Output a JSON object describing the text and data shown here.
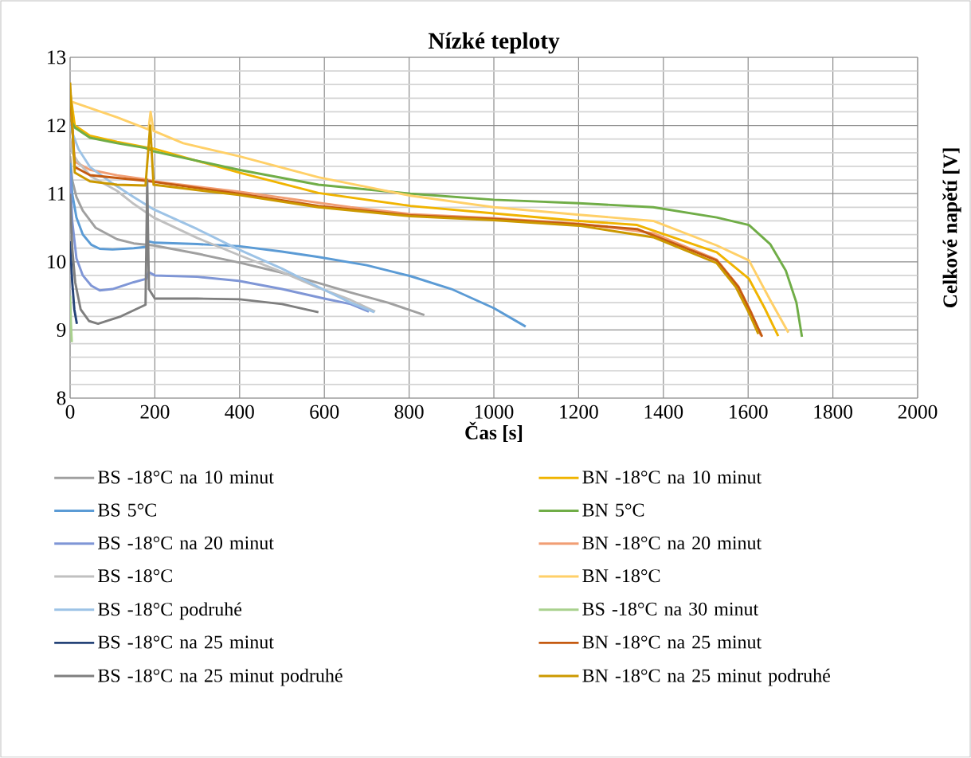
{
  "chart_data": {
    "type": "line",
    "title": "Nízké teploty",
    "xlabel": "Čas [s]",
    "ylabel": "Celkové napětí [V]",
    "xlim": [
      0,
      2000
    ],
    "xticks": [
      0,
      200,
      400,
      600,
      800,
      1000,
      1200,
      1400,
      1600,
      1800,
      2000
    ],
    "ylim": [
      8,
      13
    ],
    "yticks": [
      8,
      9,
      10,
      11,
      12,
      13
    ],
    "grid": true,
    "legend": "bottom",
    "marker": "none",
    "line_style": "solid",
    "series": [
      {
        "name": "BS -18°C na 10 minut",
        "color": "#a0a0a0",
        "x": [
          0,
          5,
          15,
          30,
          60,
          111,
          150,
          197,
          300,
          398,
          500,
          586,
          662,
          750,
          836
        ],
        "values": [
          11.55,
          11.2,
          10.95,
          10.75,
          10.5,
          10.33,
          10.27,
          10.24,
          10.12,
          9.99,
          9.84,
          9.69,
          9.55,
          9.4,
          9.22
        ]
      },
      {
        "name": "BN -18°C na 10 minut",
        "color": "#f0b400",
        "x": [
          0,
          11,
          47,
          111,
          178,
          197,
          398,
          586,
          803,
          1000,
          1201,
          1338,
          1526,
          1602,
          1639,
          1671
        ],
        "values": [
          12.5,
          12.0,
          11.85,
          11.76,
          11.68,
          11.66,
          11.31,
          11.01,
          10.82,
          10.71,
          10.6,
          10.54,
          10.14,
          9.75,
          9.32,
          8.91
        ]
      },
      {
        "name": "BS 5°C",
        "color": "#5b9bd5",
        "x": [
          0,
          5,
          15,
          30,
          50,
          70,
          100,
          150,
          180,
          185,
          200,
          300,
          398,
          500,
          586,
          700,
          803,
          900,
          1000,
          1075
        ],
        "values": [
          11.45,
          11.0,
          10.65,
          10.4,
          10.25,
          10.19,
          10.18,
          10.2,
          10.22,
          10.3,
          10.28,
          10.26,
          10.23,
          10.15,
          10.07,
          9.95,
          9.79,
          9.6,
          9.32,
          9.05
        ]
      },
      {
        "name": "BN 5°C",
        "color": "#70ad47",
        "x": [
          0,
          11,
          47,
          111,
          178,
          197,
          398,
          586,
          803,
          1000,
          1201,
          1376,
          1526,
          1602,
          1652,
          1689,
          1714,
          1727
        ],
        "values": [
          12.1,
          11.97,
          11.82,
          11.74,
          11.67,
          11.62,
          11.35,
          11.13,
          11.0,
          10.91,
          10.86,
          10.8,
          10.65,
          10.54,
          10.26,
          9.87,
          9.4,
          8.9
        ]
      },
      {
        "name": "BS -18°C na 20 minut",
        "color": "#7f96d6",
        "x": [
          0,
          5,
          15,
          30,
          50,
          70,
          100,
          150,
          180,
          185,
          200,
          300,
          398,
          500,
          600,
          662,
          705
        ],
        "values": [
          11.3,
          10.6,
          10.05,
          9.8,
          9.65,
          9.58,
          9.6,
          9.7,
          9.75,
          9.85,
          9.8,
          9.78,
          9.72,
          9.6,
          9.46,
          9.38,
          9.27
        ]
      },
      {
        "name": "BN -18°C na 20 minut",
        "color": "#f19e74",
        "x": [
          0,
          11,
          47,
          111,
          178,
          197,
          398,
          662,
          803,
          1000,
          1201,
          1376,
          1526,
          1577,
          1607,
          1630
        ],
        "values": [
          12.4,
          11.47,
          11.35,
          11.27,
          11.21,
          11.18,
          11.03,
          10.8,
          10.7,
          10.64,
          10.56,
          10.42,
          10.03,
          9.64,
          9.26,
          8.92
        ]
      },
      {
        "name": "BS -18°C",
        "color": "#c0c0c0",
        "x": [
          0,
          5,
          18,
          50,
          111,
          150,
          197,
          300,
          398,
          500,
          586,
          662,
          720
        ],
        "values": [
          11.8,
          11.6,
          11.47,
          11.25,
          11.04,
          10.85,
          10.65,
          10.35,
          10.1,
          9.85,
          9.62,
          9.44,
          9.27
        ]
      },
      {
        "name": "BN -18°C",
        "color": "#ffd068",
        "x": [
          0,
          3,
          111,
          185,
          190,
          197,
          267,
          398,
          586,
          803,
          1000,
          1201,
          1376,
          1526,
          1602,
          1652,
          1695
        ],
        "values": [
          12.5,
          12.35,
          12.12,
          11.94,
          12.2,
          11.92,
          11.74,
          11.55,
          11.24,
          10.97,
          10.8,
          10.69,
          10.6,
          10.24,
          10.02,
          9.44,
          8.96
        ]
      },
      {
        "name": "BS -18°C podruhé",
        "color": "#9dc3e6",
        "x": [
          0,
          5,
          20,
          47,
          100,
          150,
          197,
          300,
          398,
          500,
          586,
          662,
          718
        ],
        "values": [
          12.0,
          11.9,
          11.65,
          11.39,
          11.15,
          10.95,
          10.77,
          10.48,
          10.18,
          9.9,
          9.63,
          9.4,
          9.26
        ]
      },
      {
        "name": "BS -18°C na 30 minut",
        "color": "#a9d18e",
        "x": [
          0,
          2,
          4
        ],
        "values": [
          9.5,
          9.1,
          8.82
        ]
      },
      {
        "name": "BS -18°C na 25 minut",
        "color": "#264478",
        "x": [
          0,
          5,
          10,
          16
        ],
        "values": [
          10.3,
          9.7,
          9.3,
          9.09
        ]
      },
      {
        "name": "BN -18°C na 25 minut",
        "color": "#c55a11",
        "x": [
          0,
          11,
          47,
          111,
          178,
          200,
          398,
          586,
          803,
          1000,
          1201,
          1338,
          1526,
          1577,
          1607,
          1633
        ],
        "values": [
          12.5,
          11.39,
          11.27,
          11.23,
          11.19,
          11.17,
          11.0,
          10.82,
          10.68,
          10.63,
          10.55,
          10.48,
          10.02,
          9.63,
          9.25,
          8.9
        ]
      },
      {
        "name": "BS -18°C na 25 minut podruhé",
        "color": "#7f7f7f",
        "x": [
          0,
          5,
          12,
          25,
          45,
          66,
          120,
          178,
          182,
          186,
          200,
          300,
          400,
          500,
          586
        ],
        "values": [
          11.0,
          10.2,
          9.7,
          9.3,
          9.13,
          9.09,
          9.2,
          9.37,
          11.2,
          9.6,
          9.46,
          9.46,
          9.45,
          9.38,
          9.26
        ]
      },
      {
        "name": "BN -18°C na 25 minut podruhé",
        "color": "#cc9900",
        "x": [
          0,
          11,
          47,
          111,
          178,
          189,
          197,
          398,
          586,
          803,
          1000,
          1201,
          1376,
          1526,
          1571,
          1602,
          1624
        ],
        "values": [
          12.63,
          11.31,
          11.18,
          11.13,
          11.12,
          12.0,
          11.13,
          10.98,
          10.8,
          10.67,
          10.61,
          10.53,
          10.36,
          9.98,
          9.63,
          9.25,
          8.94
        ]
      }
    ]
  }
}
